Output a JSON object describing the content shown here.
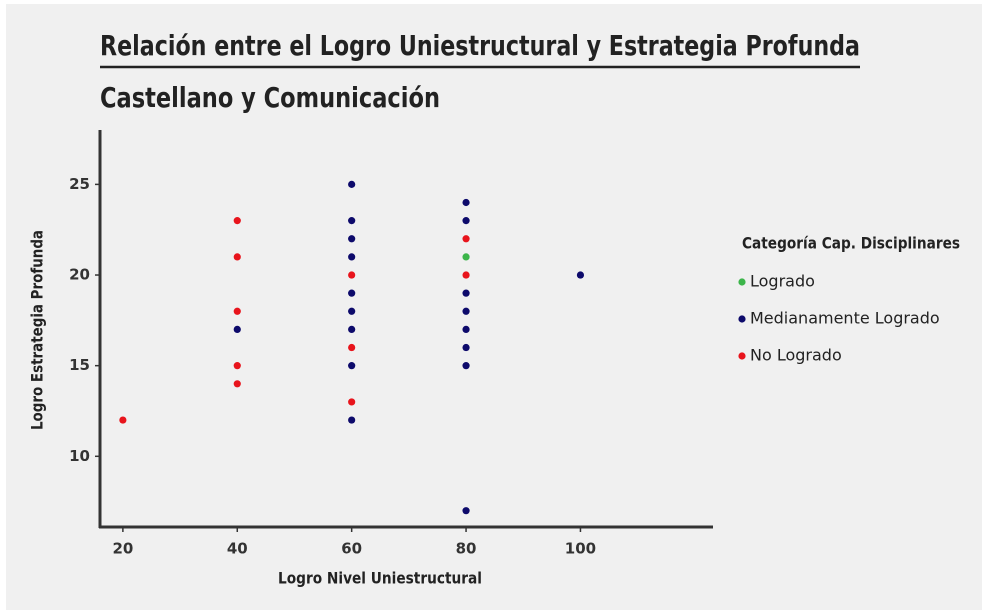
{
  "chart_data": {
    "type": "scatter",
    "title": "Relación entre el Logro Uniestructural y Estrategia Profunda",
    "subtitle": "Castellano y Comunicación",
    "x_label": "Logro Nivel Uniestructural",
    "y_label": "Logro Estrategia Profunda",
    "legend_title": "Categoría Cap. Disciplinares",
    "series": [
      {
        "name": "Logrado",
        "color": "#3cb54a",
        "x": [
          80
        ],
        "y": [
          21
        ]
      },
      {
        "name": "Medianamente Logrado",
        "color": "#0d0a6b",
        "x": [
          40,
          60,
          60,
          60,
          60,
          60,
          60,
          60,
          60,
          60,
          80,
          80,
          80,
          80,
          80,
          80,
          80,
          80,
          100
        ],
        "y": [
          17,
          25,
          23,
          22,
          21,
          19,
          18,
          17,
          15,
          12,
          24,
          23,
          19,
          18,
          17,
          16,
          15,
          7,
          20
        ]
      },
      {
        "name": "No Logrado",
        "color": "#e8141c",
        "x": [
          20,
          40,
          40,
          40,
          40,
          40,
          60,
          60,
          60,
          80,
          80
        ],
        "y": [
          12,
          23,
          21,
          18,
          15,
          14,
          20,
          16,
          13,
          22,
          20
        ]
      }
    ],
    "xlim": [
      16,
      123
    ],
    "xticks": [
      20,
      40,
      60,
      80,
      100
    ],
    "ylim": [
      6.1,
      28
    ],
    "yticks": [
      10,
      15,
      20,
      25
    ],
    "grid": false
  }
}
